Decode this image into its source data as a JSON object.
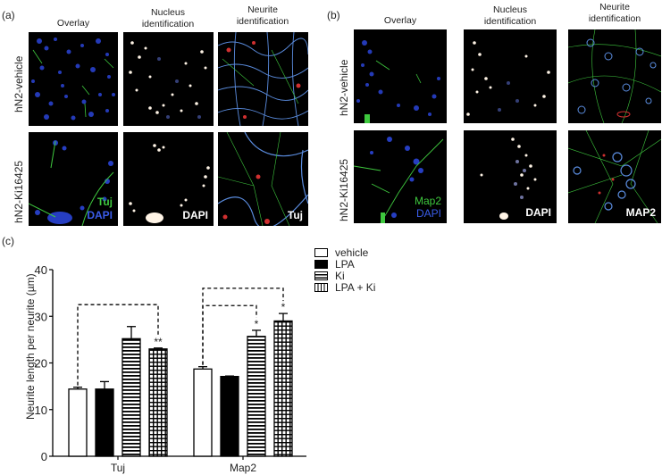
{
  "figure": {
    "panel_a": {
      "label": "(a)",
      "columns": [
        "Overlay",
        "Nucleus\nidentification",
        "Neurite\nidentification"
      ],
      "rows": [
        "hN2-vehicle",
        "hN2-Ki16425"
      ],
      "stain_labels": {
        "overlay_top": "Tuj",
        "overlay_bottom": "DAPI",
        "nucleus": "DAPI",
        "neurite": "Tuj"
      }
    },
    "panel_b": {
      "label": "(b)",
      "columns": [
        "Overlay",
        "Nucleus\nidentification",
        "Neurite\nidentification"
      ],
      "rows": [
        "hN2-vehicle",
        "hN2-Ki16425"
      ],
      "stain_labels": {
        "overlay_top": "Map2",
        "overlay_bottom": "DAPI",
        "nucleus": "DAPI",
        "neurite": "MAP2"
      }
    },
    "panel_c": {
      "label": "(c)"
    },
    "colors": {
      "tuj_green": "#3ec83e",
      "dapi_blue": "#3a5ce8",
      "outline_blue": "#5b8de0",
      "red_mark": "#d03030",
      "nucleus_white": "#fff4e6"
    }
  },
  "chart_data": {
    "type": "bar",
    "title": "",
    "xlabel": "",
    "ylabel": "Neurite length per neurite (µm)",
    "ylim": [
      0,
      40
    ],
    "yticks": [
      0,
      10,
      20,
      30,
      40
    ],
    "grid": false,
    "legend_position": "top-right, outside plot",
    "categories": [
      "Tuj",
      "Map2"
    ],
    "series": [
      {
        "name": "vehicle",
        "pattern": "white",
        "values": [
          14.4,
          18.7
        ],
        "errors": [
          0.4,
          0.5
        ]
      },
      {
        "name": "LPA",
        "pattern": "black",
        "values": [
          14.4,
          17.1
        ],
        "errors": [
          1.6,
          0.1
        ]
      },
      {
        "name": "Ki",
        "pattern": "horizontal-stripes",
        "values": [
          25.2,
          25.7
        ],
        "errors": [
          2.6,
          1.3
        ]
      },
      {
        "name": "LPA + Ki",
        "pattern": "grid",
        "values": [
          23.0,
          29.0
        ],
        "errors": [
          0.2,
          1.6
        ]
      }
    ],
    "annotations": [
      {
        "category": "Tuj",
        "from": "vehicle",
        "to": "LPA + Ki",
        "bracket_y": 32.5,
        "label": "**"
      },
      {
        "category": "Map2",
        "from": "vehicle",
        "to": "Ki",
        "bracket_y": 32.3,
        "label": "*"
      },
      {
        "category": "Map2",
        "from": "vehicle",
        "to": "LPA + Ki",
        "bracket_y": 36.0,
        "label": "*"
      }
    ]
  }
}
